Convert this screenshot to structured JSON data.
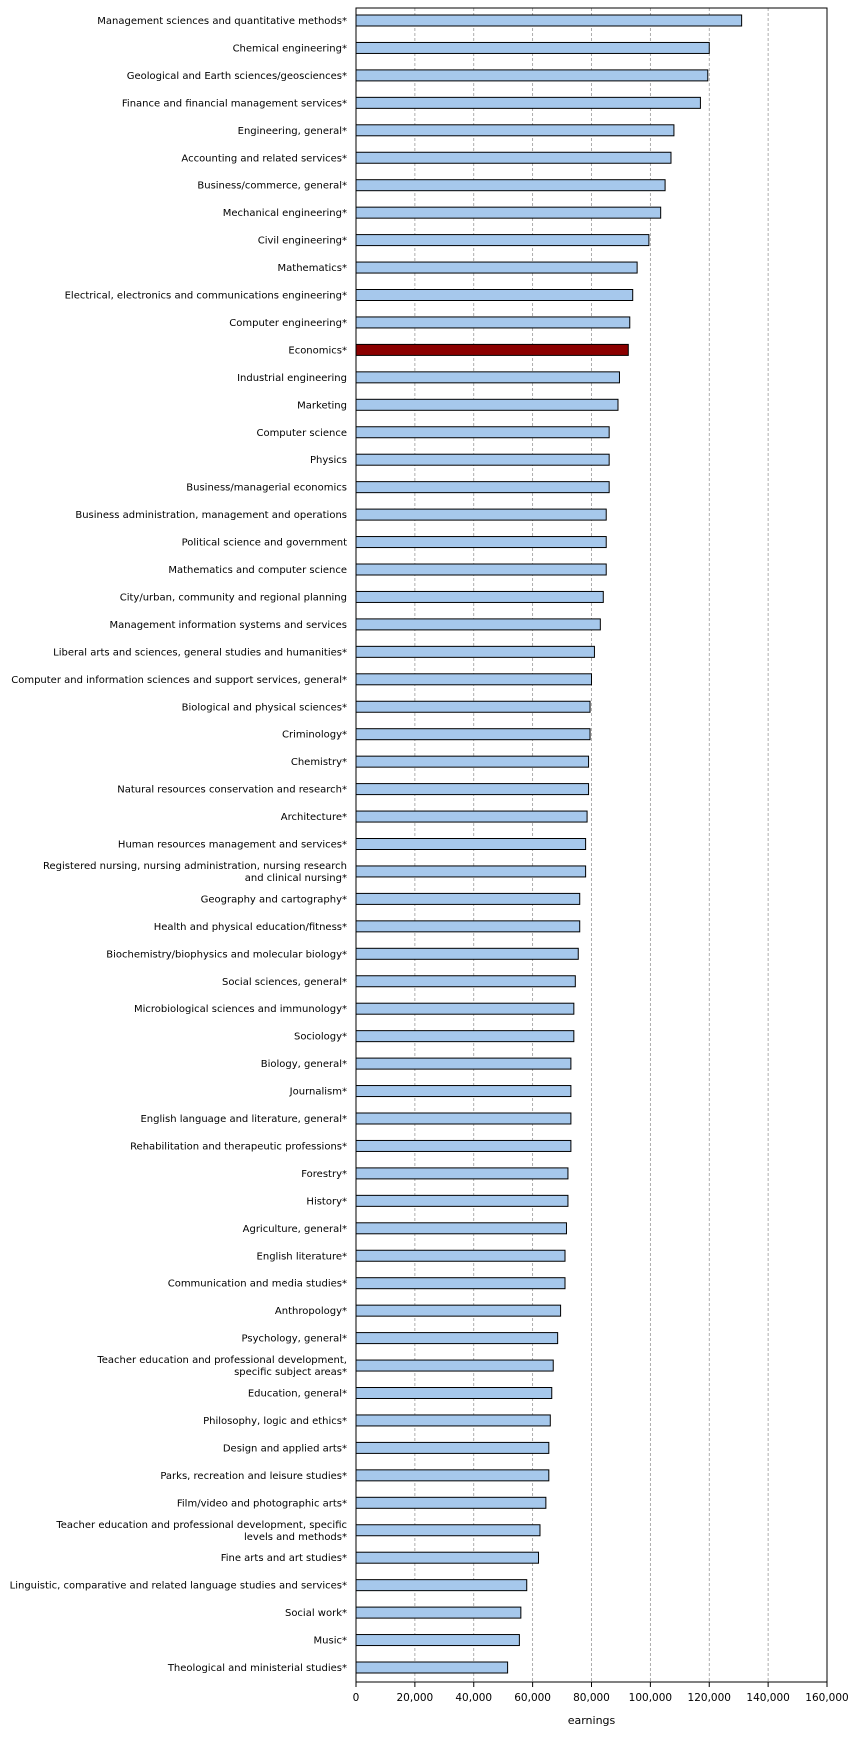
{
  "chart_data": {
    "type": "bar",
    "orientation": "horizontal",
    "xlabel": "earnings",
    "xlim": [
      0,
      160000
    ],
    "xticks": [
      0,
      20000,
      40000,
      60000,
      80000,
      100000,
      120000,
      140000,
      160000
    ],
    "xtick_labels": [
      "0",
      "20,000",
      "40,000",
      "60,000",
      "80,000",
      "100,000",
      "120,000",
      "140,000",
      "160,000"
    ],
    "grid": "vertical dashed",
    "colors": {
      "default": "#a6c8ec",
      "highlight": "#8b0000",
      "border": "#000000",
      "grid": "#999999"
    },
    "highlight_category": "Economics*",
    "categories": [
      "Management sciences and quantitative methods*",
      "Chemical engineering*",
      "Geological and Earth sciences/geosciences*",
      "Finance and financial management services*",
      "Engineering, general*",
      "Accounting and related services*",
      "Business/commerce, general*",
      "Mechanical engineering*",
      "Civil engineering*",
      "Mathematics*",
      "Electrical, electronics and communications engineering*",
      "Computer engineering*",
      "Economics*",
      "Industrial engineering",
      "Marketing",
      "Computer science",
      "Physics",
      "Business/managerial economics",
      "Business administration, management and operations",
      "Political science and government",
      "Mathematics and computer science",
      "City/urban, community and regional planning",
      "Management information systems and services",
      "Liberal arts and sciences, general studies and humanities*",
      "Computer and information sciences and support services, general*",
      "Biological and physical sciences*",
      "Criminology*",
      "Chemistry*",
      "Natural resources conservation and research*",
      "Architecture*",
      "Human resources management and services*",
      "Registered nursing, nursing administration, nursing research and clinical nursing*",
      "Geography and cartography*",
      "Health and physical education/fitness*",
      "Biochemistry/biophysics and molecular biology*",
      "Social sciences, general*",
      "Microbiological sciences and immunology*",
      "Sociology*",
      "Biology, general*",
      "Journalism*",
      "English language and literature, general*",
      "Rehabilitation and therapeutic professions*",
      "Forestry*",
      "History*",
      "Agriculture, general*",
      "English literature*",
      "Communication and media studies*",
      "Anthropology*",
      "Psychology, general*",
      "Teacher education and professional development, specific subject areas*",
      "Education, general*",
      "Philosophy, logic and ethics*",
      "Design and applied arts*",
      "Parks, recreation and leisure studies*",
      "Film/video and photographic arts*",
      "Teacher education and professional development, specific levels and methods*",
      "Fine arts and art studies*",
      "Linguistic, comparative and related language studies and services*",
      "Social work*",
      "Music*",
      "Theological and ministerial studies*"
    ],
    "display_lines": [
      [
        "Management sciences and quantitative methods*"
      ],
      [
        "Chemical engineering*"
      ],
      [
        "Geological and Earth sciences/geosciences*"
      ],
      [
        "Finance and financial management services*"
      ],
      [
        "Engineering, general*"
      ],
      [
        "Accounting and related services*"
      ],
      [
        "Business/commerce, general*"
      ],
      [
        "Mechanical engineering*"
      ],
      [
        "Civil engineering*"
      ],
      [
        "Mathematics*"
      ],
      [
        "Electrical, electronics and communications engineering*"
      ],
      [
        "Computer engineering*"
      ],
      [
        "Economics*"
      ],
      [
        "Industrial engineering"
      ],
      [
        "Marketing"
      ],
      [
        "Computer science"
      ],
      [
        "Physics"
      ],
      [
        "Business/managerial economics"
      ],
      [
        "Business administration, management and operations"
      ],
      [
        "Political science and government"
      ],
      [
        "Mathematics and computer science"
      ],
      [
        "City/urban, community and regional planning"
      ],
      [
        "Management information systems and services"
      ],
      [
        "Liberal arts and sciences, general studies and humanities*"
      ],
      [
        "Computer and information sciences and support services, general*"
      ],
      [
        "Biological and physical sciences*"
      ],
      [
        "Criminology*"
      ],
      [
        "Chemistry*"
      ],
      [
        "Natural resources conservation and research*"
      ],
      [
        "Architecture*"
      ],
      [
        "Human resources management and services*"
      ],
      [
        "Registered nursing, nursing administration, nursing research",
        "and clinical nursing*"
      ],
      [
        "Geography and cartography*"
      ],
      [
        "Health and physical education/fitness*"
      ],
      [
        "Biochemistry/biophysics and molecular biology*"
      ],
      [
        "Social sciences, general*"
      ],
      [
        "Microbiological sciences and immunology*"
      ],
      [
        "Sociology*"
      ],
      [
        "Biology, general*"
      ],
      [
        "Journalism*"
      ],
      [
        "English language and literature, general*"
      ],
      [
        "Rehabilitation and therapeutic professions*"
      ],
      [
        "Forestry*"
      ],
      [
        "History*"
      ],
      [
        "Agriculture, general*"
      ],
      [
        "English literature*"
      ],
      [
        "Communication and media studies*"
      ],
      [
        "Anthropology*"
      ],
      [
        "Psychology, general*"
      ],
      [
        "Teacher education and professional development,",
        "specific subject areas*"
      ],
      [
        "Education, general*"
      ],
      [
        "Philosophy, logic and ethics*"
      ],
      [
        "Design and applied arts*"
      ],
      [
        "Parks, recreation and leisure studies*"
      ],
      [
        "Film/video and photographic arts*"
      ],
      [
        "Teacher education and professional development, specific",
        "levels and methods*"
      ],
      [
        "Fine arts and art studies*"
      ],
      [
        "Linguistic, comparative and related language studies and services*"
      ],
      [
        "Social work*"
      ],
      [
        "Music*"
      ],
      [
        "Theological and ministerial studies*"
      ]
    ],
    "values": [
      131000,
      120000,
      119500,
      117000,
      108000,
      107000,
      105000,
      103500,
      99500,
      95500,
      94000,
      93000,
      92500,
      89500,
      89000,
      86000,
      86000,
      86000,
      85000,
      85000,
      85000,
      84000,
      83000,
      81000,
      80000,
      79500,
      79500,
      79000,
      79000,
      78500,
      78000,
      78000,
      76000,
      76000,
      75500,
      74500,
      74000,
      74000,
      73000,
      73000,
      73000,
      73000,
      72000,
      72000,
      71500,
      71000,
      71000,
      69500,
      68500,
      67000,
      66500,
      66000,
      65500,
      65500,
      64500,
      62500,
      62000,
      58000,
      56000,
      55500,
      51500
    ]
  }
}
